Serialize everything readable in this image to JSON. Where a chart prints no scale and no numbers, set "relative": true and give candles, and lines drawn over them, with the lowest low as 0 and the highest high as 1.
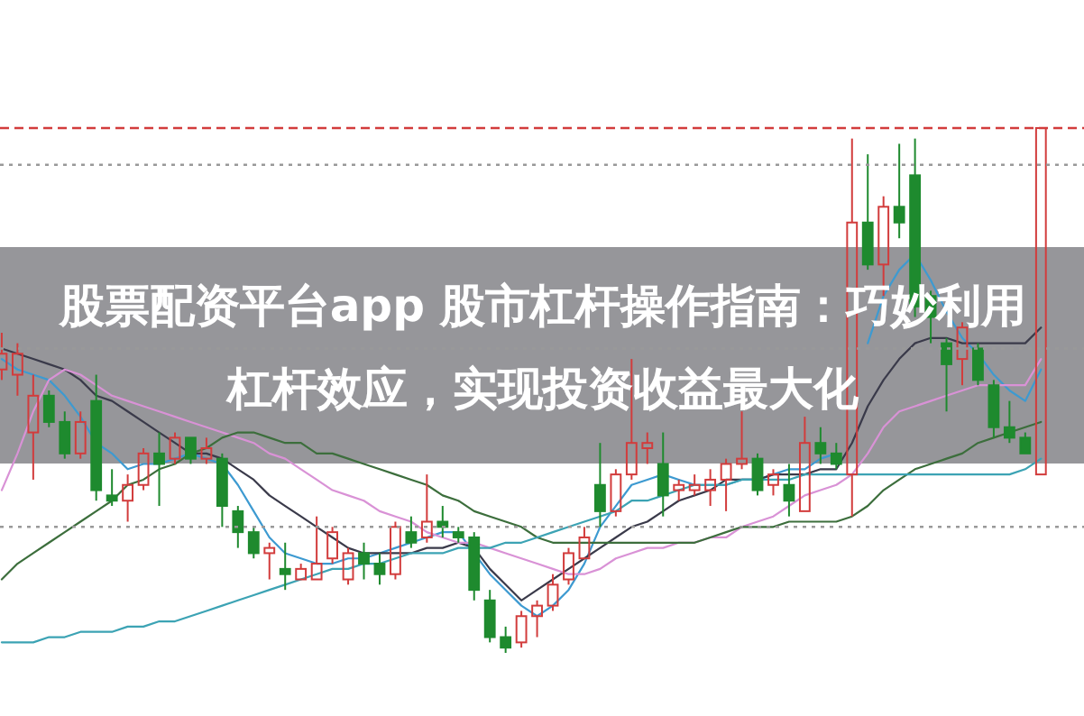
{
  "chart_data": {
    "type": "candlestick",
    "title": "股票配资平台app 股市杠杆操作指南：巧妙利用杠杆效应，实现投资收益最大化",
    "relative": true,
    "categories": [
      null,
      null,
      null,
      null,
      null,
      null,
      null,
      null,
      null,
      null,
      null,
      null,
      null,
      null,
      null,
      null,
      null,
      null,
      null,
      null,
      null,
      null,
      null,
      null,
      null,
      null,
      null,
      null,
      null,
      null,
      null,
      null,
      null,
      null,
      null,
      null,
      null,
      null,
      null,
      null,
      null,
      null,
      null,
      null,
      null,
      null,
      null,
      null,
      null,
      null,
      null,
      null,
      null,
      null,
      null,
      null,
      null,
      null,
      null,
      null,
      null,
      null,
      null,
      null,
      null,
      null,
      null
    ],
    "ohlc": [
      [
        0.54,
        0.61,
        0.52,
        0.57
      ],
      [
        0.53,
        0.59,
        0.49,
        0.57
      ],
      [
        0.42,
        0.53,
        0.33,
        0.49
      ],
      [
        0.49,
        0.5,
        0.43,
        0.44
      ],
      [
        0.44,
        0.46,
        0.37,
        0.38
      ],
      [
        0.38,
        0.46,
        0.37,
        0.44
      ],
      [
        0.48,
        0.53,
        0.29,
        0.31
      ],
      [
        0.3,
        0.35,
        0.28,
        0.29
      ],
      [
        0.29,
        0.34,
        0.25,
        0.32
      ],
      [
        0.32,
        0.39,
        0.31,
        0.38
      ],
      [
        0.38,
        0.42,
        0.28,
        0.36
      ],
      [
        0.37,
        0.42,
        0.36,
        0.41
      ],
      [
        0.41,
        0.41,
        0.36,
        0.37
      ],
      [
        0.37,
        0.41,
        0.36,
        0.39
      ],
      [
        0.37,
        0.38,
        0.24,
        0.28
      ],
      [
        0.27,
        0.28,
        0.2,
        0.23
      ],
      [
        0.23,
        0.24,
        0.18,
        0.19
      ],
      [
        0.19,
        0.21,
        0.14,
        0.2
      ],
      [
        0.16,
        0.21,
        0.12,
        0.15
      ],
      [
        0.14,
        0.17,
        0.14,
        0.16
      ],
      [
        0.14,
        0.26,
        0.14,
        0.17
      ],
      [
        0.18,
        0.24,
        0.17,
        0.23
      ],
      [
        0.14,
        0.2,
        0.13,
        0.19
      ],
      [
        0.19,
        0.21,
        0.14,
        0.17
      ],
      [
        0.17,
        0.19,
        0.13,
        0.15
      ],
      [
        0.15,
        0.25,
        0.14,
        0.24
      ],
      [
        0.23,
        0.26,
        0.2,
        0.21
      ],
      [
        0.22,
        0.34,
        0.21,
        0.25
      ],
      [
        0.25,
        0.28,
        0.22,
        0.24
      ],
      [
        0.23,
        0.24,
        0.21,
        0.22
      ],
      [
        0.22,
        0.23,
        0.1,
        0.12
      ],
      [
        0.1,
        0.12,
        0.02,
        0.03
      ],
      [
        0.03,
        0.05,
        0,
        0.01
      ],
      [
        0.02,
        0.08,
        0.01,
        0.07
      ],
      [
        0.07,
        0.1,
        0.03,
        0.09
      ],
      [
        0.09,
        0.15,
        0.08,
        0.13
      ],
      [
        0.14,
        0.2,
        0.13,
        0.19
      ],
      [
        0.18,
        0.24,
        0.18,
        0.22
      ],
      [
        0.32,
        0.4,
        0.24,
        0.27
      ],
      [
        0.27,
        0.35,
        0.26,
        0.34
      ],
      [
        0.34,
        0.56,
        0.33,
        0.4
      ],
      [
        0.39,
        0.42,
        0.36,
        0.4
      ],
      [
        0.36,
        0.42,
        0.26,
        0.3
      ],
      [
        0.31,
        0.33,
        0.29,
        0.32
      ],
      [
        0.31,
        0.34,
        0.3,
        0.32
      ],
      [
        0.31,
        0.35,
        0.28,
        0.33
      ],
      [
        0.33,
        0.37,
        0.27,
        0.36
      ],
      [
        0.36,
        0.46,
        0.35,
        0.37
      ],
      [
        0.37,
        0.38,
        0.3,
        0.31
      ],
      [
        0.32,
        0.35,
        0.3,
        0.34
      ],
      [
        0.32,
        0.36,
        0.26,
        0.29
      ],
      [
        0.27,
        0.45,
        0.27,
        0.4
      ],
      [
        0.4,
        0.43,
        0.36,
        0.38
      ],
      [
        0.38,
        0.4,
        0.35,
        0.36
      ],
      [
        0.34,
        0.98,
        0.26,
        0.82
      ],
      [
        0.82,
        0.95,
        0.73,
        0.74
      ],
      [
        0.74,
        0.87,
        0.68,
        0.85
      ],
      [
        0.85,
        0.97,
        0.79,
        0.82
      ],
      [
        0.91,
        0.98,
        0.64,
        0.66
      ],
      [
        0.68,
        0.69,
        0.59,
        0.64
      ],
      [
        0.59,
        0.6,
        0.46,
        0.55
      ],
      [
        0.56,
        0.63,
        0.51,
        0.62
      ],
      [
        0.58,
        0.59,
        0.51,
        0.52
      ],
      [
        0.51,
        0.52,
        0.41,
        0.43
      ],
      [
        0.43,
        0.48,
        0.4,
        0.41
      ],
      [
        0.41,
        0.42,
        0.38,
        0.38
      ],
      [
        0.34,
        1.0,
        0.34,
        1.0
      ]
    ],
    "colors": [
      "#d23c3c",
      "#d23c3c",
      "#d23c3c",
      "#1e8a2e",
      "#1e8a2e",
      "#d23c3c",
      "#1e8a2e",
      "#1e8a2e",
      "#d23c3c",
      "#d23c3c",
      "#1e8a2e",
      "#d23c3c",
      "#1e8a2e",
      "#d23c3c",
      "#1e8a2e",
      "#1e8a2e",
      "#1e8a2e",
      "#d23c3c",
      "#1e8a2e",
      "#d23c3c",
      "#d23c3c",
      "#d23c3c",
      "#d23c3c",
      "#1e8a2e",
      "#1e8a2e",
      "#d23c3c",
      "#1e8a2e",
      "#d23c3c",
      "#1e8a2e",
      "#1e8a2e",
      "#1e8a2e",
      "#1e8a2e",
      "#1e8a2e",
      "#d23c3c",
      "#d23c3c",
      "#d23c3c",
      "#d23c3c",
      "#d23c3c",
      "#1e8a2e",
      "#d23c3c",
      "#d23c3c",
      "#d23c3c",
      "#1e8a2e",
      "#d23c3c",
      "#d23c3c",
      "#d23c3c",
      "#d23c3c",
      "#d23c3c",
      "#1e8a2e",
      "#d23c3c",
      "#1e8a2e",
      "#d23c3c",
      "#1e8a2e",
      "#1e8a2e",
      "#d23c3c",
      "#1e8a2e",
      "#d23c3c",
      "#1e8a2e",
      "#1e8a2e",
      "#1e8a2e",
      "#1e8a2e",
      "#d23c3c",
      "#1e8a2e",
      "#1e8a2e",
      "#1e8a2e",
      "#1e8a2e",
      "#d23c3c"
    ],
    "series": [
      {
        "type": "line",
        "color": "#3d9ad1",
        "values": [
          0.56,
          0.54,
          0.53,
          0.52,
          0.49,
          0.45,
          0.4,
          0.38,
          0.35,
          0.36,
          0.36,
          0.37,
          0.38,
          0.37,
          0.36,
          0.32,
          0.27,
          0.22,
          0.19,
          0.18,
          0.17,
          0.17,
          0.18,
          0.18,
          0.19,
          0.2,
          0.21,
          0.22,
          0.23,
          0.23,
          0.19,
          0.15,
          0.12,
          0.09,
          0.07,
          0.09,
          0.12,
          0.17,
          0.24,
          0.28,
          0.32,
          0.33,
          0.34,
          0.33,
          0.32,
          0.32,
          0.32,
          0.33,
          0.33,
          0.34,
          0.35,
          0.35,
          0.37,
          0.38,
          null,
          0.59,
          0.68,
          0.73,
          0.76,
          0.71,
          0.65,
          0.6,
          0.57,
          0.53,
          0.5,
          0.48,
          0.54
        ]
      },
      {
        "type": "line",
        "color": "#3a3a4a",
        "values": [
          0.58,
          0.57,
          0.56,
          0.55,
          0.54,
          0.52,
          0.49,
          0.48,
          0.46,
          0.44,
          0.42,
          0.4,
          0.38,
          0.38,
          0.37,
          0.35,
          0.33,
          0.3,
          0.28,
          0.26,
          0.24,
          0.22,
          0.2,
          0.19,
          0.19,
          0.19,
          0.19,
          0.2,
          0.2,
          0.21,
          0.2,
          0.16,
          0.13,
          0.1,
          0.12,
          0.14,
          0.16,
          0.18,
          0.2,
          0.22,
          0.24,
          0.25,
          0.27,
          0.29,
          0.3,
          0.31,
          0.33,
          0.33,
          0.33,
          0.34,
          0.34,
          0.34,
          0.35,
          0.35,
          0.4,
          0.47,
          0.52,
          0.56,
          0.59,
          0.6,
          0.6,
          0.59,
          0.59,
          0.59,
          0.59,
          0.59,
          0.62
        ]
      },
      {
        "type": "line",
        "color": "#d992d6",
        "values": [
          0.31,
          0.38,
          0.46,
          0.52,
          0.54,
          0.53,
          0.51,
          0.49,
          0.48,
          0.47,
          0.46,
          0.45,
          0.44,
          0.43,
          0.42,
          0.41,
          0.4,
          0.38,
          0.37,
          0.35,
          0.33,
          0.31,
          0.3,
          0.29,
          0.27,
          0.26,
          0.25,
          0.23,
          0.22,
          0.21,
          0.21,
          0.2,
          0.19,
          0.18,
          0.17,
          0.16,
          0.15,
          0.15,
          0.16,
          0.18,
          0.19,
          0.2,
          0.2,
          0.21,
          0.21,
          0.22,
          0.22,
          0.24,
          0.25,
          0.26,
          0.28,
          0.3,
          0.31,
          0.32,
          0.34,
          0.38,
          0.43,
          0.46,
          0.47,
          0.48,
          0.49,
          0.5,
          0.51,
          0.51,
          0.51,
          0.51,
          0.56
        ]
      },
      {
        "type": "line",
        "color": "#3c6e3c",
        "values": [
          0.14,
          0.17,
          0.19,
          0.21,
          0.23,
          0.25,
          0.27,
          0.29,
          0.32,
          0.33,
          0.35,
          0.36,
          0.38,
          0.39,
          0.41,
          0.42,
          0.42,
          0.41,
          0.4,
          0.4,
          0.38,
          0.38,
          0.37,
          0.36,
          0.35,
          0.34,
          0.33,
          0.32,
          0.3,
          0.29,
          0.27,
          0.26,
          0.25,
          0.24,
          0.22,
          0.21,
          0.21,
          0.21,
          0.21,
          0.21,
          0.21,
          0.21,
          0.21,
          0.21,
          0.21,
          0.22,
          0.23,
          0.24,
          0.24,
          0.24,
          0.25,
          0.25,
          0.25,
          0.25,
          0.26,
          0.28,
          0.31,
          0.33,
          0.35,
          0.36,
          0.37,
          0.38,
          0.4,
          0.41,
          0.42,
          0.43,
          0.44
        ]
      },
      {
        "type": "line",
        "color": "#3ca3b4",
        "values": [
          0.02,
          0.02,
          0.02,
          0.03,
          0.03,
          0.04,
          0.04,
          0.04,
          0.05,
          0.05,
          0.06,
          0.06,
          0.07,
          0.08,
          0.09,
          0.1,
          0.11,
          0.12,
          0.13,
          0.14,
          0.15,
          0.16,
          0.16,
          0.17,
          0.17,
          0.18,
          0.19,
          0.19,
          0.19,
          0.2,
          0.2,
          0.2,
          0.21,
          0.21,
          0.22,
          0.23,
          0.24,
          0.25,
          0.26,
          0.27,
          0.29,
          0.29,
          0.3,
          0.31,
          0.32,
          0.32,
          0.32,
          0.33,
          0.33,
          0.33,
          0.33,
          0.34,
          0.34,
          0.34,
          0.34,
          0.34,
          0.34,
          0.34,
          0.34,
          0.34,
          0.34,
          0.34,
          0.34,
          0.34,
          0.34,
          0.35,
          0.37
        ]
      }
    ],
    "ref_lines": [
      {
        "axis": "y",
        "value": 0.93,
        "color": "#999999",
        "line_style": "dotted"
      },
      {
        "axis": "y",
        "value": 0.58,
        "color": "#999999",
        "line_style": "dotted"
      },
      {
        "axis": "y",
        "value": 0.24,
        "color": "#999999",
        "line_style": "dotted"
      },
      {
        "axis": "y",
        "value": 1.0,
        "color": "#d23c3c",
        "line_style": "dashed"
      }
    ]
  }
}
